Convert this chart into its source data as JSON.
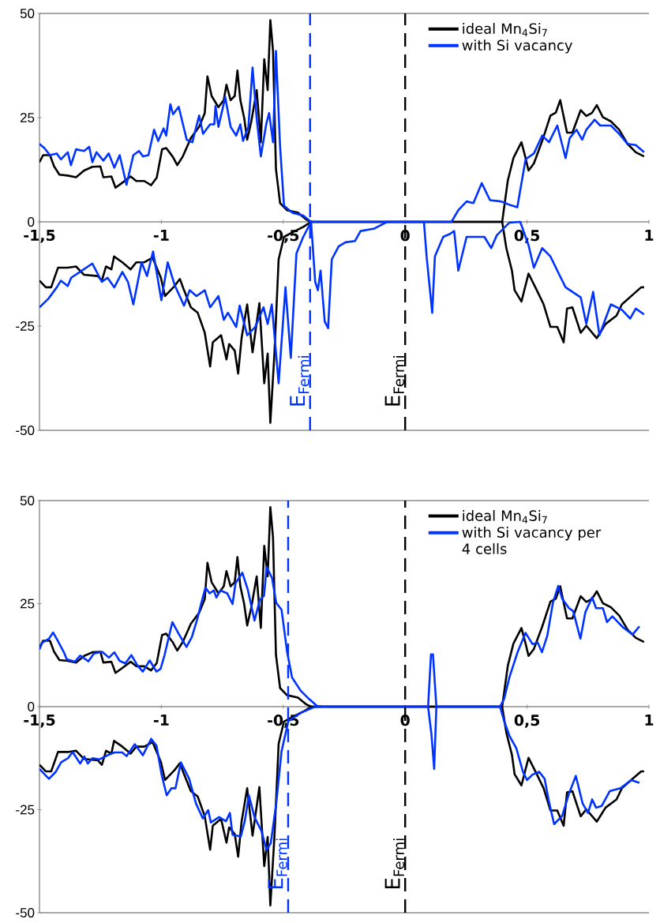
{
  "chart_data": [
    {
      "type": "line",
      "xlim": [
        -1.5,
        1.0
      ],
      "ylim": [
        -50,
        50
      ],
      "xticks": [
        {
          "value": -1.5,
          "label": "-1,5"
        },
        {
          "value": -1,
          "label": "-1"
        },
        {
          "value": -0.5,
          "label": "-0,5"
        },
        {
          "value": 0,
          "label": "0"
        },
        {
          "value": 0.5,
          "label": "0,5"
        },
        {
          "value": 1,
          "label": "1"
        }
      ],
      "yticks": [
        -50,
        -25,
        0,
        25,
        50
      ],
      "legend": "top right",
      "ref_lines": [
        {
          "axis": "x",
          "value": -0.39,
          "label": "E$_{Fermi}$",
          "color": "#0033ff",
          "line_style": "dashed"
        },
        {
          "axis": "x",
          "value": 0,
          "label": "E$_{Fermi}$",
          "color": "#000000",
          "line_style": "dashed"
        }
      ],
      "series": [
        {
          "name": "ideal Mn$_{4}$Si$_{7}$",
          "color": "#000000",
          "x": [
            -1.5,
            -1.485,
            -1.457,
            -1.44,
            -1.418,
            -1.384,
            -1.35,
            -1.317,
            -1.283,
            -1.25,
            -1.238,
            -1.205,
            -1.188,
            -1.16,
            -1.126,
            -1.103,
            -1.07,
            -1.042,
            -1.019,
            -0.997,
            -0.98,
            -0.952,
            -0.935,
            -0.912,
            -0.879,
            -0.845,
            -0.822,
            -0.811,
            -0.794,
            -0.766,
            -0.744,
            -0.733,
            -0.716,
            -0.699,
            -0.688,
            -0.676,
            -0.66,
            -0.648,
            -0.631,
            -0.609,
            -0.592,
            -0.578,
            -0.564,
            -0.553,
            -0.542,
            -0.53,
            -0.513,
            -0.485,
            -0.44,
            -0.407,
            -0.386,
            0.398,
            0.421,
            0.444,
            0.477,
            0.494,
            0.506,
            0.528,
            0.562,
            0.596,
            0.618,
            0.636,
            0.664,
            0.686,
            0.72,
            0.743,
            0.766,
            0.786,
            0.811,
            0.844,
            0.878,
            0.912,
            0.946,
            0.98
          ],
          "values": [
            14.3,
            16,
            16,
            13.3,
            11.3,
            11.1,
            10.7,
            12.3,
            13.2,
            13.3,
            10.7,
            10.9,
            8.2,
            9.4,
            10.9,
            9.8,
            9.8,
            8.8,
            10.6,
            17.4,
            17.7,
            15.5,
            13.6,
            15.7,
            20.1,
            22.8,
            26.1,
            34.9,
            30.2,
            27.5,
            29.2,
            32.9,
            29.2,
            30.2,
            36.3,
            29.2,
            24.8,
            19.7,
            24.1,
            31.6,
            19.1,
            39,
            31.6,
            48.4,
            41,
            12.6,
            4.5,
            2.8,
            2.2,
            0.6,
            0,
            0,
            9.9,
            15.3,
            19.1,
            15.3,
            12.3,
            14,
            19.4,
            25.5,
            26.2,
            29.2,
            21.4,
            21.4,
            26.8,
            25.4,
            26.1,
            28,
            25.1,
            24.1,
            22.1,
            18.7,
            16.7,
            15.7
          ]
        },
        {
          "color": "#000000",
          "x": [
            -1.5,
            -1.474,
            -1.452,
            -1.424,
            -1.384,
            -1.35,
            -1.317,
            -1.261,
            -1.244,
            -1.227,
            -1.205,
            -1.194,
            -1.16,
            -1.126,
            -1.103,
            -1.07,
            -1.036,
            -1.002,
            -0.985,
            -0.946,
            -0.924,
            -0.907,
            -0.879,
            -0.851,
            -0.822,
            -0.8,
            -0.789,
            -0.755,
            -0.733,
            -0.722,
            -0.699,
            -0.685,
            -0.671,
            -0.648,
            -0.626,
            -0.598,
            -0.578,
            -0.564,
            -0.553,
            -0.536,
            -0.519,
            -0.497,
            -0.452,
            -0.418,
            -0.386,
            0.398,
            0.415,
            0.438,
            0.449,
            0.477,
            0.506,
            0.54,
            0.568,
            0.596,
            0.624,
            0.65,
            0.664,
            0.686,
            0.72,
            0.743,
            0.786,
            0.822,
            0.867,
            0.889,
            0.935,
            0.968,
            0.98
          ],
          "values": [
            -14.1,
            -15.7,
            -15.7,
            -11,
            -11,
            -10.7,
            -12.7,
            -13,
            -14.1,
            -10.7,
            -11.4,
            -8.3,
            -9.7,
            -11.4,
            -9.7,
            -9.7,
            -8.6,
            -13.4,
            -17.8,
            -15.4,
            -13.7,
            -16.4,
            -20.5,
            -21.8,
            -26.6,
            -34.7,
            -28.9,
            -27.2,
            -33,
            -29.3,
            -30.9,
            -36.4,
            -27.9,
            -19.8,
            -31.3,
            -19.5,
            -38.7,
            -31.6,
            -48.2,
            -31.3,
            -9,
            -3.6,
            -2.2,
            -1.2,
            0,
            0,
            -6.3,
            -11.7,
            -16.4,
            -19.1,
            -12.4,
            -16.4,
            -19.8,
            -25.2,
            -25.2,
            -28.9,
            -20.8,
            -20.5,
            -26.6,
            -24.9,
            -27.9,
            -24.5,
            -22.5,
            -19.8,
            -17.4,
            -15.7,
            -15.7
          ]
        },
        {
          "name": "with Si vacancy",
          "color": "#0033ff",
          "x": [
            -1.5,
            -1.48,
            -1.457,
            -1.429,
            -1.412,
            -1.384,
            -1.371,
            -1.35,
            -1.317,
            -1.296,
            -1.283,
            -1.266,
            -1.238,
            -1.216,
            -1.193,
            -1.171,
            -1.143,
            -1.115,
            -1.092,
            -1.075,
            -1.053,
            -1.03,
            -1.013,
            -0.991,
            -0.98,
            -0.963,
            -0.952,
            -0.929,
            -0.896,
            -0.873,
            -0.845,
            -0.829,
            -0.8,
            -0.783,
            -0.778,
            -0.766,
            -0.738,
            -0.716,
            -0.693,
            -0.676,
            -0.665,
            -0.643,
            -0.626,
            -0.609,
            -0.592,
            -0.57,
            -0.558,
            -0.542,
            -0.53,
            -0.513,
            -0.497,
            -0.463,
            -0.418,
            -0.386,
            0.19,
            0.218,
            0.252,
            0.28,
            0.314,
            0.348,
            0.393,
            0.432,
            0.46,
            0.494,
            0.528,
            0.562,
            0.59,
            0.624,
            0.658,
            0.675,
            0.703,
            0.726,
            0.743,
            0.777,
            0.8,
            0.844,
            0.878,
            0.912,
            0.946,
            0.98
          ],
          "values": [
            18.7,
            17.7,
            16,
            16.4,
            15,
            16.7,
            13.6,
            17.4,
            17,
            18,
            14.3,
            16.7,
            14.7,
            16.4,
            13,
            16,
            8.9,
            16,
            17,
            15.7,
            16,
            22.1,
            19.4,
            22.4,
            20.7,
            28.2,
            25.8,
            27.6,
            19.7,
            19.1,
            25.5,
            21.1,
            23.4,
            23.4,
            27.8,
            22.8,
            29.9,
            22.8,
            20.7,
            23.4,
            19.4,
            22.8,
            37,
            24.8,
            15.7,
            23.4,
            26.1,
            19.1,
            41,
            18,
            3.9,
            2.2,
            1.5,
            0,
            0,
            2.8,
            4.9,
            4.5,
            9.3,
            5.2,
            4.9,
            4,
            3.5,
            15,
            16.4,
            20.7,
            19.1,
            23.1,
            15.3,
            20.1,
            22.1,
            19.7,
            22.1,
            24.5,
            23.1,
            23.1,
            21.1,
            18.7,
            18.4,
            16.7
          ]
        },
        {
          "color": "#0033ff",
          "x": [
            -1.5,
            -1.463,
            -1.429,
            -1.412,
            -1.384,
            -1.37,
            -1.334,
            -1.283,
            -1.244,
            -1.221,
            -1.193,
            -1.16,
            -1.137,
            -1.115,
            -1.081,
            -1.059,
            -1.034,
            -1.0,
            -0.974,
            -0.946,
            -0.907,
            -0.884,
            -0.856,
            -0.822,
            -0.8,
            -0.766,
            -0.744,
            -0.727,
            -0.693,
            -0.679,
            -0.648,
            -0.615,
            -0.581,
            -0.564,
            -0.547,
            -0.519,
            -0.491,
            -0.469,
            -0.446,
            -0.418,
            -0.386,
            -0.369,
            -0.358,
            -0.347,
            -0.33,
            -0.316,
            -0.301,
            -0.273,
            -0.245,
            -0.206,
            -0.183,
            -0.126,
            -0.081,
            -0.07,
            0.077,
            0.088,
            0.111,
            0.122,
            0.156,
            0.184,
            0.201,
            0.218,
            0.252,
            0.325,
            0.353,
            0.376,
            0.427,
            0.472,
            0.506,
            0.528,
            0.562,
            0.596,
            0.63,
            0.658,
            0.686,
            0.72,
            0.743,
            0.771,
            0.797,
            0.822,
            0.844,
            0.889,
            0.923,
            0.946,
            0.98
          ],
          "values": [
            -20.5,
            -18.4,
            -15.7,
            -14.1,
            -15.4,
            -13.4,
            -12,
            -10,
            -14.4,
            -13.4,
            -15.7,
            -12,
            -14.4,
            -19.8,
            -9.7,
            -13,
            -7.1,
            -18.8,
            -9.7,
            -15.1,
            -20.1,
            -16.4,
            -17.8,
            -16.4,
            -20.5,
            -17.8,
            -23.5,
            -21.8,
            -25.2,
            -20.1,
            -27.2,
            -25.2,
            -20.5,
            -24.5,
            -19.8,
            -38.7,
            -15.7,
            -32.6,
            -7.6,
            -3.6,
            0,
            -14.4,
            -16.4,
            -11.7,
            -23.9,
            -25.5,
            -9,
            -5.9,
            -4.9,
            -4.6,
            -2.2,
            -1.6,
            -0.2,
            0,
            0,
            -8.3,
            -21.8,
            -8.3,
            -3.6,
            -2.9,
            -2.2,
            -11.7,
            -3.6,
            -3.6,
            -6.3,
            -3.2,
            -0.2,
            0,
            -5.6,
            -11,
            -6.3,
            -8.3,
            -12.4,
            -15.7,
            -16.8,
            -18.1,
            -24.5,
            -16.8,
            -27.2,
            -23.2,
            -19.8,
            -21.1,
            -23.2,
            -20.8,
            -22.2
          ]
        }
      ]
    },
    {
      "type": "line",
      "xlim": [
        -1.5,
        1.0
      ],
      "ylim": [
        -50,
        50
      ],
      "xticks": [
        {
          "value": -1.5,
          "label": "-1,5"
        },
        {
          "value": -1,
          "label": "-1"
        },
        {
          "value": -0.5,
          "label": "-0,5"
        },
        {
          "value": 0,
          "label": "0"
        },
        {
          "value": 0.5,
          "label": "0,5"
        },
        {
          "value": 1,
          "label": "1"
        }
      ],
      "yticks": [
        -50,
        -25,
        0,
        25,
        50
      ],
      "legend": "top right",
      "ref_lines": [
        {
          "axis": "x",
          "value": -0.48,
          "label": "E$_{Fermi}$",
          "color": "#0033ff",
          "line_style": "dashed"
        },
        {
          "axis": "x",
          "value": 0,
          "label": "E$_{Fermi}$",
          "color": "#000000",
          "line_style": "dashed"
        }
      ],
      "series": [
        {
          "name": "ideal Mn$_{4}$Si$_{7}$",
          "color": "#000000",
          "x": [
            -1.5,
            -1.485,
            -1.457,
            -1.44,
            -1.418,
            -1.384,
            -1.35,
            -1.317,
            -1.283,
            -1.25,
            -1.238,
            -1.205,
            -1.188,
            -1.16,
            -1.126,
            -1.103,
            -1.07,
            -1.042,
            -1.019,
            -0.997,
            -0.98,
            -0.952,
            -0.935,
            -0.912,
            -0.879,
            -0.845,
            -0.822,
            -0.811,
            -0.794,
            -0.766,
            -0.744,
            -0.733,
            -0.716,
            -0.699,
            -0.688,
            -0.676,
            -0.66,
            -0.648,
            -0.631,
            -0.609,
            -0.592,
            -0.578,
            -0.564,
            -0.553,
            -0.542,
            -0.53,
            -0.513,
            -0.485,
            -0.44,
            -0.407,
            -0.386,
            0.398,
            0.421,
            0.444,
            0.477,
            0.494,
            0.506,
            0.528,
            0.562,
            0.596,
            0.618,
            0.636,
            0.664,
            0.686,
            0.72,
            0.743,
            0.766,
            0.786,
            0.811,
            0.844,
            0.878,
            0.912,
            0.946,
            0.98
          ],
          "values": [
            14.3,
            16,
            16,
            13.3,
            11.3,
            11.1,
            10.7,
            12.3,
            13.2,
            13.3,
            10.7,
            10.9,
            8.2,
            9.4,
            10.9,
            9.8,
            9.8,
            8.8,
            10.6,
            17.4,
            17.7,
            15.5,
            13.6,
            15.7,
            20.1,
            22.8,
            26.1,
            34.9,
            30.2,
            27.5,
            29.2,
            32.9,
            29.2,
            30.2,
            36.3,
            29.2,
            24.8,
            19.7,
            24.1,
            31.6,
            19.1,
            39,
            31.6,
            48.4,
            41,
            12.6,
            4.5,
            2.8,
            2.2,
            0.6,
            0,
            0,
            9.9,
            15.3,
            19.1,
            15.3,
            12.3,
            14,
            19.4,
            25.5,
            26.2,
            29.2,
            21.4,
            21.4,
            26.8,
            25.4,
            26.1,
            28,
            25.1,
            24.1,
            22.1,
            18.7,
            16.7,
            15.7
          ]
        },
        {
          "color": "#000000",
          "x": [
            -1.5,
            -1.474,
            -1.452,
            -1.424,
            -1.384,
            -1.35,
            -1.317,
            -1.261,
            -1.244,
            -1.227,
            -1.205,
            -1.194,
            -1.16,
            -1.126,
            -1.103,
            -1.07,
            -1.036,
            -1.002,
            -0.985,
            -0.946,
            -0.924,
            -0.907,
            -0.879,
            -0.851,
            -0.822,
            -0.8,
            -0.789,
            -0.755,
            -0.733,
            -0.722,
            -0.699,
            -0.685,
            -0.671,
            -0.648,
            -0.626,
            -0.598,
            -0.578,
            -0.564,
            -0.553,
            -0.536,
            -0.519,
            -0.497,
            -0.452,
            -0.418,
            -0.386,
            0.398,
            0.415,
            0.438,
            0.449,
            0.477,
            0.506,
            0.54,
            0.568,
            0.596,
            0.624,
            0.65,
            0.664,
            0.686,
            0.72,
            0.743,
            0.786,
            0.822,
            0.867,
            0.889,
            0.935,
            0.968,
            0.98
          ],
          "values": [
            -14.1,
            -15.7,
            -15.7,
            -11,
            -11,
            -10.7,
            -12.7,
            -13,
            -14.1,
            -10.7,
            -11.4,
            -8.3,
            -9.7,
            -11.4,
            -9.7,
            -9.7,
            -8.6,
            -13.4,
            -17.8,
            -15.4,
            -13.7,
            -16.4,
            -20.5,
            -21.8,
            -26.6,
            -34.7,
            -28.9,
            -27.2,
            -33,
            -29.3,
            -30.9,
            -36.4,
            -27.9,
            -19.8,
            -31.3,
            -19.5,
            -38.7,
            -31.6,
            -48.2,
            -31.3,
            -9,
            -3.6,
            -2.2,
            -1.2,
            0,
            0,
            -6.3,
            -11.7,
            -16.4,
            -19.1,
            -12.4,
            -16.4,
            -19.8,
            -25.2,
            -25.2,
            -28.9,
            -20.8,
            -20.5,
            -26.6,
            -24.9,
            -27.9,
            -24.5,
            -22.5,
            -19.8,
            -17.4,
            -15.7,
            -15.7
          ]
        },
        {
          "name": "with Si vacancy per 4 cells",
          "color": "#0033ff",
          "x": [
            -1.5,
            -1.489,
            -1.461,
            -1.444,
            -1.427,
            -1.4,
            -1.388,
            -1.355,
            -1.333,
            -1.299,
            -1.277,
            -1.243,
            -1.215,
            -1.193,
            -1.171,
            -1.148,
            -1.123,
            -1.098,
            -1.076,
            -1.048,
            -1.02,
            -1.003,
            -0.987,
            -0.955,
            -0.931,
            -0.897,
            -0.875,
            -0.853,
            -0.836,
            -0.819,
            -0.802,
            -0.785,
            -0.774,
            -0.758,
            -0.73,
            -0.708,
            -0.696,
            -0.668,
            -0.646,
            -0.618,
            -0.596,
            -0.579,
            -0.568,
            -0.546,
            -0.529,
            -0.507,
            -0.484,
            -0.464,
            -0.429,
            -0.395,
            -0.362,
            -0.334,
            0.094,
            0.106,
            0.114,
            0.128,
            0.389,
            0.406,
            0.428,
            0.461,
            0.494,
            0.522,
            0.544,
            0.561,
            0.583,
            0.606,
            0.628,
            0.644,
            0.672,
            0.689,
            0.719,
            0.739,
            0.767,
            0.783,
            0.811,
            0.828,
            0.85,
            0.894,
            0.933,
            0.961
          ],
          "values": [
            13.9,
            15.5,
            16.5,
            18,
            16.2,
            13.2,
            11.5,
            10.9,
            12.4,
            11,
            12.9,
            13.3,
            11.9,
            13.2,
            11.1,
            10.5,
            12.5,
            10,
            8.5,
            11.2,
            8.5,
            9.2,
            12.5,
            20.5,
            17.9,
            14.5,
            16.9,
            21.2,
            25.2,
            28.9,
            27.5,
            28.2,
            26.5,
            28.2,
            27.5,
            24.9,
            29.9,
            32.5,
            28.5,
            20.9,
            25.9,
            26.9,
            33.9,
            31.2,
            25.2,
            23.5,
            13.2,
            7.1,
            3.9,
            1.9,
            0.2,
            0,
            0,
            12.7,
            12.7,
            0,
            0,
            1.9,
            7.2,
            13.2,
            17.9,
            15.2,
            15.5,
            13.2,
            17.2,
            25.2,
            29.3,
            26.2,
            23.9,
            23.2,
            16.5,
            22.9,
            26.5,
            23.9,
            23.9,
            20.5,
            21.9,
            19.2,
            17.5,
            19.5
          ]
        },
        {
          "color": "#0033ff",
          "x": [
            -1.5,
            -1.461,
            -1.433,
            -1.411,
            -1.383,
            -1.364,
            -1.333,
            -1.316,
            -1.302,
            -1.282,
            -1.255,
            -1.221,
            -1.193,
            -1.16,
            -1.143,
            -1.109,
            -1.076,
            -1.042,
            -1.02,
            -0.998,
            -0.978,
            -0.959,
            -0.942,
            -0.92,
            -0.886,
            -0.858,
            -0.83,
            -0.808,
            -0.797,
            -0.763,
            -0.735,
            -0.719,
            -0.708,
            -0.674,
            -0.658,
            -0.641,
            -0.618,
            -0.59,
            -0.568,
            -0.551,
            -0.529,
            -0.507,
            -0.479,
            -0.429,
            -0.373,
            -0.334,
            0.094,
            0.108,
            0.119,
            0.128,
            0.389,
            0.406,
            0.428,
            0.456,
            0.483,
            0.5,
            0.522,
            0.55,
            0.572,
            0.589,
            0.611,
            0.644,
            0.672,
            0.7,
            0.728,
            0.75,
            0.767,
            0.783,
            0.806,
            0.839,
            0.883,
            0.928,
            0.961
          ],
          "values": [
            -15.1,
            -17.5,
            -15.8,
            -13.5,
            -12.5,
            -11,
            -13.8,
            -12.1,
            -13.8,
            -12.5,
            -12.8,
            -11.8,
            -11.1,
            -11.1,
            -12,
            -9.1,
            -11.8,
            -7.8,
            -9.5,
            -16.8,
            -21.5,
            -19.8,
            -19.8,
            -13.5,
            -17.5,
            -23.5,
            -27.1,
            -25.1,
            -28.1,
            -26.8,
            -27.8,
            -25.8,
            -31.1,
            -31.5,
            -27.8,
            -21.5,
            -26.8,
            -30.1,
            -34.8,
            -33.1,
            -23.5,
            -10.8,
            -3.5,
            -1.5,
            -0.1,
            0,
            0,
            -6.8,
            -15.1,
            0,
            0,
            -3.5,
            -7.1,
            -10.1,
            -15.8,
            -17.8,
            -16.5,
            -15.8,
            -17.5,
            -22.8,
            -28.5,
            -26.5,
            -21.1,
            -16.8,
            -23.5,
            -25.8,
            -22.5,
            -24.5,
            -24.1,
            -20.5,
            -19.8,
            -17.8,
            -18.5
          ]
        }
      ]
    }
  ]
}
